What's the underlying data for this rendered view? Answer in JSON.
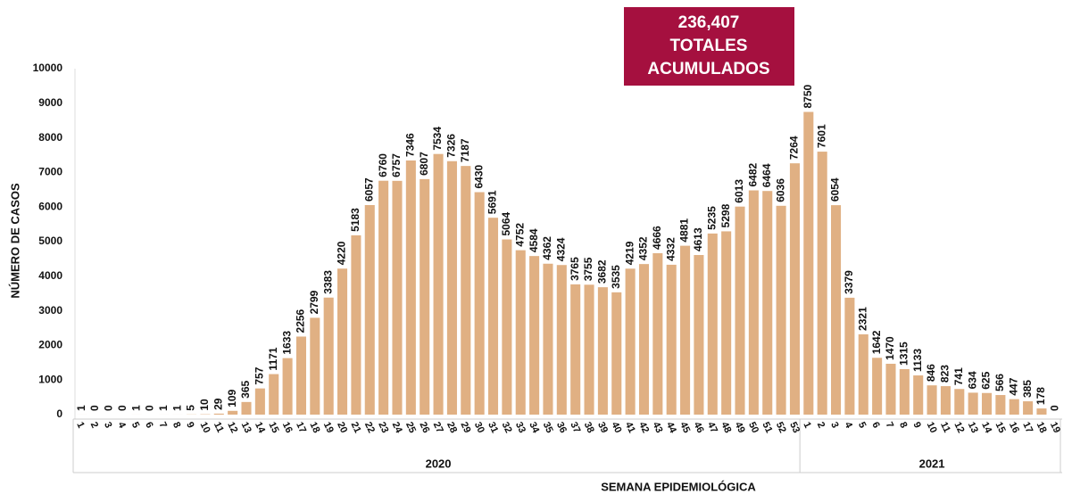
{
  "chart_data": {
    "type": "bar",
    "annotation": [
      "236,407",
      "TOTALES",
      "ACUMULADOS"
    ],
    "x_label": "SEMANA EPIDEMIOLÓGICA",
    "y_label": "NÚMERO DE CASOS",
    "groups": [
      "2020",
      "2021"
    ],
    "categories": [
      "1",
      "2",
      "3",
      "4",
      "5",
      "6",
      "7",
      "8",
      "9",
      "10",
      "11",
      "12",
      "13",
      "14",
      "15",
      "16",
      "17",
      "18",
      "19",
      "20",
      "21",
      "22",
      "23",
      "24",
      "25",
      "26",
      "27",
      "28",
      "29",
      "30",
      "31",
      "32",
      "33",
      "34",
      "35",
      "36",
      "37",
      "38",
      "39",
      "40",
      "41",
      "42",
      "43",
      "44",
      "45",
      "46",
      "47",
      "48",
      "49",
      "50",
      "51",
      "52",
      "53",
      "1",
      "2",
      "3",
      "4",
      "5",
      "6",
      "7",
      "8",
      "9",
      "10",
      "11",
      "12",
      "13",
      "14",
      "15",
      "16",
      "17",
      "18",
      "19"
    ],
    "values": [
      1,
      0,
      0,
      0,
      1,
      0,
      1,
      1,
      5,
      10,
      29,
      109,
      365,
      757,
      1171,
      1633,
      2256,
      2799,
      3383,
      4220,
      5183,
      6057,
      6760,
      6757,
      7346,
      6807,
      7534,
      7326,
      7187,
      6430,
      5691,
      5064,
      4752,
      4584,
      4362,
      4324,
      3765,
      3755,
      3682,
      3535,
      4219,
      4352,
      4666,
      4332,
      4881,
      4613,
      5235,
      5298,
      6013,
      6482,
      6464,
      6036,
      7264,
      8750,
      7601,
      6054,
      3379,
      2321,
      1642,
      1470,
      1315,
      1133,
      846,
      823,
      741,
      634,
      625,
      566,
      447,
      385,
      178,
      0
    ],
    "color": "#e0b083",
    "ylim": [
      0,
      10000
    ],
    "yticks": [
      0,
      1000,
      2000,
      3000,
      4000,
      5000,
      6000,
      7000,
      8000,
      9000,
      10000
    ],
    "grid": false
  }
}
